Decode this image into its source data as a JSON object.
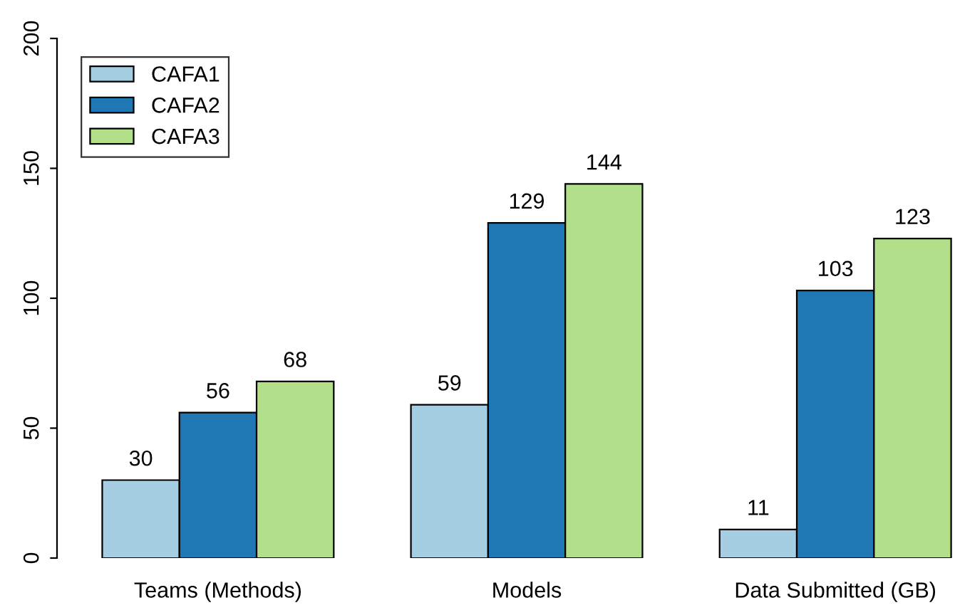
{
  "chart_data": {
    "type": "bar",
    "categories": [
      "Teams (Methods)",
      "Models",
      "Data Submitted (GB)"
    ],
    "series": [
      {
        "name": "CAFA1",
        "color": "#a6cee3",
        "values": [
          30,
          59,
          11
        ]
      },
      {
        "name": "CAFA2",
        "color": "#1f78b4",
        "values": [
          56,
          129,
          103
        ]
      },
      {
        "name": "CAFA3",
        "color": "#b2df8a",
        "values": [
          68,
          144,
          123
        ]
      }
    ],
    "ylim": [
      0,
      200
    ],
    "yticks": [
      0,
      50,
      100,
      150,
      200
    ],
    "data_labels": true,
    "grid": false,
    "legend": "top left"
  }
}
